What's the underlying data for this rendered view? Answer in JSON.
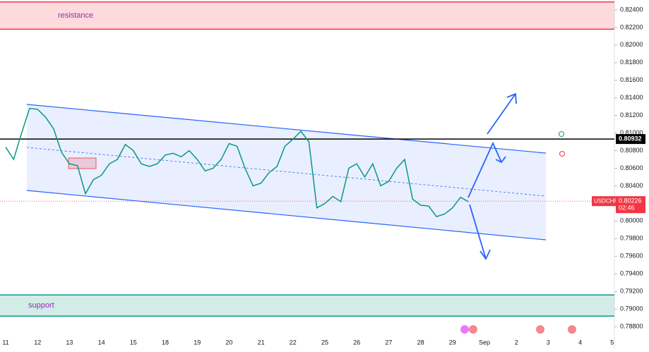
{
  "chart_data": {
    "type": "line",
    "categories": [
      "11",
      null,
      null,
      null,
      "12",
      null,
      null,
      null,
      "13",
      null,
      null,
      null,
      "14",
      null,
      null,
      null,
      "15",
      null,
      null,
      null,
      "18",
      null,
      null,
      null,
      "19",
      null,
      null,
      null,
      "20",
      null,
      null,
      null,
      "21",
      null,
      null,
      null,
      "22",
      null,
      null,
      null,
      "25",
      null,
      null,
      null,
      "26",
      null,
      null,
      null,
      "27",
      null,
      null,
      null,
      "28",
      null,
      null,
      null,
      "29",
      null,
      null,
      null,
      "Sep",
      null,
      null,
      null,
      "2",
      null,
      null,
      null,
      "3",
      null,
      null,
      null,
      "4",
      null,
      null,
      null,
      "5",
      null,
      null,
      null
    ],
    "series": [
      {
        "name": "USDCHF",
        "color": "#089981",
        "values": [
          0.8084,
          0.807,
          0.81,
          0.8128,
          0.8127,
          0.8118,
          0.8105,
          0.8078,
          0.8065,
          0.8063,
          0.8031,
          0.8047,
          0.8052,
          0.8065,
          0.807,
          0.8087,
          0.808,
          0.8065,
          0.8062,
          0.8065,
          0.8075,
          0.8077,
          0.8073,
          0.808,
          0.807,
          0.8057,
          0.806,
          0.807,
          0.8088,
          0.8085,
          0.806,
          0.804,
          0.8043,
          0.8055,
          0.8062,
          0.8085,
          0.8093,
          0.8102,
          0.809,
          0.8015,
          0.802,
          0.8028,
          0.8022,
          0.806,
          0.8065,
          0.805,
          0.8065,
          0.804,
          0.8045,
          0.806,
          0.807,
          0.8025,
          0.8018,
          0.8017,
          0.8005,
          0.8008,
          0.8015,
          0.8027,
          0.8022,
          null,
          null,
          null,
          null,
          null,
          null,
          null,
          null,
          null,
          null,
          null,
          null,
          null,
          null,
          null,
          null,
          null,
          null,
          null,
          null,
          null
        ]
      }
    ],
    "ylim": [
      0.78664,
      0.82512
    ],
    "yticks": [
      {
        "value": 0.788,
        "label": "0.78800"
      },
      {
        "value": 0.79,
        "label": "0.79000"
      },
      {
        "value": 0.792,
        "label": "0.79200"
      },
      {
        "value": 0.794,
        "label": "0.79400"
      },
      {
        "value": 0.796,
        "label": "0.79600"
      },
      {
        "value": 0.798,
        "label": "0.79800"
      },
      {
        "value": 0.8,
        "label": "0.80000"
      },
      {
        "value": 0.802,
        "label": "0.80200"
      },
      {
        "value": 0.804,
        "label": "0.80400"
      },
      {
        "value": 0.806,
        "label": "0.80600"
      },
      {
        "value": 0.808,
        "label": "0.80800"
      },
      {
        "value": 0.81,
        "label": "0.81000"
      },
      {
        "value": 0.812,
        "label": "0.81200"
      },
      {
        "value": 0.814,
        "label": "0.81400"
      },
      {
        "value": 0.816,
        "label": "0.81600"
      },
      {
        "value": 0.818,
        "label": "0.81800"
      },
      {
        "value": 0.82,
        "label": "0.82000"
      },
      {
        "value": 0.822,
        "label": "0.82200"
      },
      {
        "value": 0.824,
        "label": "0.82400"
      }
    ],
    "zones": [
      {
        "label": "resistance",
        "range": [
          0.8218,
          0.8249
        ],
        "color": "#f23645"
      },
      {
        "label": "support",
        "range": [
          0.7892,
          0.7916
        ],
        "color": "#089981"
      }
    ],
    "level": {
      "value": 0.80932,
      "label": "0.80932"
    },
    "current": {
      "symbol": "USDCHF",
      "value": 0.80226,
      "label": "0.80226",
      "time": "02:46"
    }
  }
}
